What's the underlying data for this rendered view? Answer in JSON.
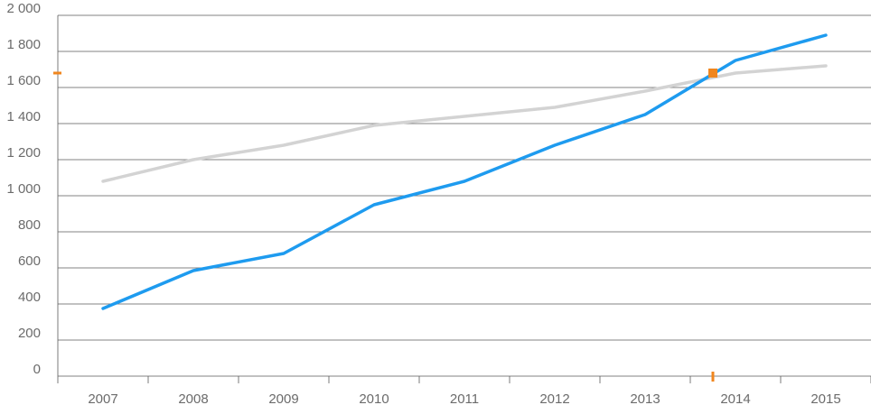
{
  "chart_data": {
    "type": "line",
    "title": "",
    "xlabel": "",
    "ylabel": "",
    "categories": [
      "2007",
      "2008",
      "2009",
      "2010",
      "2011",
      "2012",
      "2013",
      "2014",
      "2015"
    ],
    "y_tick_labels": [
      "0",
      "200",
      "400",
      "600",
      "800",
      "1 000",
      "1 200",
      "1 400",
      "1 600",
      "1 800",
      "2 000"
    ],
    "ylim": [
      0,
      2000
    ],
    "grid": true,
    "series": [
      {
        "color": "#d3d3d3",
        "values": [
          1080,
          1200,
          1280,
          1390,
          1440,
          1490,
          1580,
          1680,
          1720
        ]
      },
      {
        "color": "#1e9bef",
        "values": [
          375,
          585,
          680,
          950,
          1080,
          1280,
          1450,
          1750,
          1890
        ]
      }
    ],
    "marker": {
      "color": "#f0861e",
      "x": 2013.75,
      "y": 1680
    }
  }
}
